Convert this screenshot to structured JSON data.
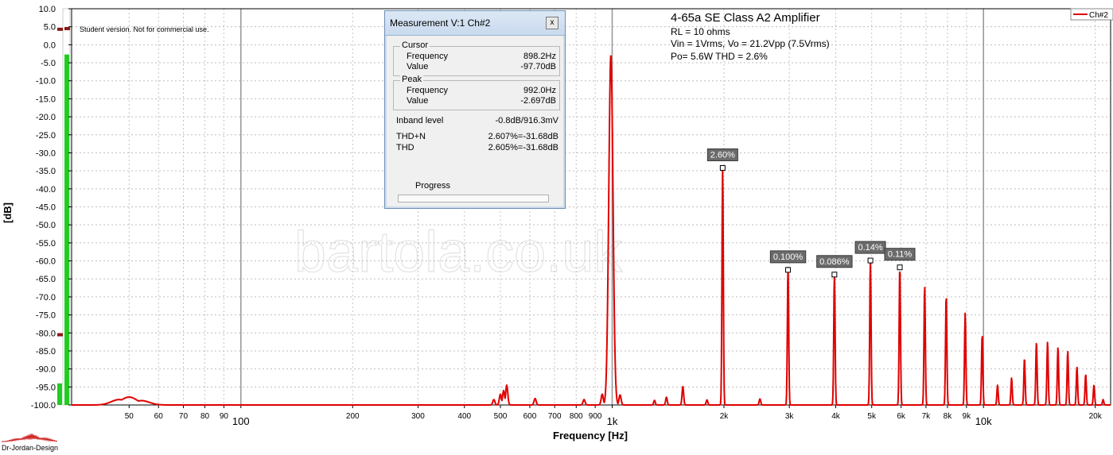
{
  "chart_data": {
    "type": "line",
    "title": "4-65a SE Class A2 Amplifier",
    "subtitle_lines": [
      "RL = 10 ohms",
      "Vin = 1Vrms, Vo = 21.2Vpp (7.5Vrms)",
      "Po= 5.6W THD = 2.6%"
    ],
    "xlabel": "Frequency [Hz]",
    "ylabel": "[dB]",
    "x_scale": "log",
    "xlim": [
      35,
      22000
    ],
    "ylim": [
      -100,
      10
    ],
    "y_ticks": [
      10,
      5,
      0,
      -5,
      -10,
      -15,
      -20,
      -25,
      -30,
      -35,
      -40,
      -45,
      -50,
      -55,
      -60,
      -65,
      -70,
      -75,
      -80,
      -85,
      -90,
      -95,
      -100
    ],
    "y_tick_labels": [
      "10.0",
      "5.0",
      "0.0",
      "-5.0",
      "-10.0",
      "-15.0",
      "-20.0",
      "-25.0",
      "-30.0",
      "-35.0",
      "-40.0",
      "-45.0",
      "-50.0",
      "-55.0",
      "-60.0",
      "-65.0",
      "-70.0",
      "-75.0",
      "-80.0",
      "-85.0",
      "-90.0",
      "-95.0",
      "-100.0"
    ],
    "x_ticks": [
      {
        "value": 50,
        "label": "50"
      },
      {
        "value": 60,
        "label": "60"
      },
      {
        "value": 70,
        "label": "70"
      },
      {
        "value": 80,
        "label": "80"
      },
      {
        "value": 90,
        "label": "90"
      },
      {
        "value": 100,
        "label": "100"
      },
      {
        "value": 200,
        "label": "200"
      },
      {
        "value": 300,
        "label": "300"
      },
      {
        "value": 400,
        "label": "400"
      },
      {
        "value": 500,
        "label": "500"
      },
      {
        "value": 600,
        "label": "600"
      },
      {
        "value": 700,
        "label": "700"
      },
      {
        "value": 800,
        "label": "800"
      },
      {
        "value": 900,
        "label": "900"
      },
      {
        "value": 1000,
        "label": "1k"
      },
      {
        "value": 2000,
        "label": "2k"
      },
      {
        "value": 3000,
        "label": "3k"
      },
      {
        "value": 4000,
        "label": "4k"
      },
      {
        "value": 5000,
        "label": "5k"
      },
      {
        "value": 6000,
        "label": "6k"
      },
      {
        "value": 7000,
        "label": "7k"
      },
      {
        "value": 8000,
        "label": "8k"
      },
      {
        "value": 9000,
        "label": "9k"
      },
      {
        "value": 10000,
        "label": "10k"
      },
      {
        "value": 20000,
        "label": "20k"
      }
    ],
    "major_gridlines": [
      100,
      1000,
      10000
    ],
    "grid": true,
    "legend_position": "top-right",
    "series": [
      {
        "name": "Ch#2",
        "color": "#e00000",
        "floor": -100,
        "peaks": [
          {
            "f": 47,
            "db": -98.5,
            "w": 0.03
          },
          {
            "f": 50,
            "db": -97.8,
            "w": 0.03
          },
          {
            "f": 54,
            "db": -98.8,
            "w": 0.03
          },
          {
            "f": 480,
            "db": -98.5,
            "w": 0.004
          },
          {
            "f": 500,
            "db": -97.0,
            "w": 0.004
          },
          {
            "f": 510,
            "db": -96.0,
            "w": 0.004
          },
          {
            "f": 520,
            "db": -94.5,
            "w": 0.004
          },
          {
            "f": 620,
            "db": -98.2,
            "w": 0.004
          },
          {
            "f": 840,
            "db": -98.5,
            "w": 0.004
          },
          {
            "f": 940,
            "db": -97.0,
            "w": 0.004
          },
          {
            "f": 992,
            "db": -2.697,
            "w": 0.008
          },
          {
            "f": 1050,
            "db": -97.2,
            "w": 0.004
          },
          {
            "f": 1300,
            "db": -98.7,
            "w": 0.003
          },
          {
            "f": 1400,
            "db": -97.8,
            "w": 0.003
          },
          {
            "f": 1550,
            "db": -94.8,
            "w": 0.003
          },
          {
            "f": 1800,
            "db": -98.6,
            "w": 0.003
          },
          {
            "f": 1984,
            "db": -34,
            "w": 0.0025
          },
          {
            "f": 2500,
            "db": -98.3,
            "w": 0.003
          },
          {
            "f": 2976,
            "db": -61.5,
            "w": 0.0025
          },
          {
            "f": 3968,
            "db": -63.5,
            "w": 0.0025
          },
          {
            "f": 4960,
            "db": -59.5,
            "w": 0.0025
          },
          {
            "f": 5952,
            "db": -61.5,
            "w": 0.0025
          },
          {
            "f": 6944,
            "db": -66.8,
            "w": 0.0025
          },
          {
            "f": 7936,
            "db": -69.5,
            "w": 0.0025
          },
          {
            "f": 8928,
            "db": -74.5,
            "w": 0.0025
          },
          {
            "f": 9920,
            "db": -80.5,
            "w": 0.0025
          },
          {
            "f": 10912,
            "db": -94.5,
            "w": 0.0025
          },
          {
            "f": 11904,
            "db": -92.5,
            "w": 0.0025
          },
          {
            "f": 12896,
            "db": -87.0,
            "w": 0.0025
          },
          {
            "f": 13888,
            "db": -82.5,
            "w": 0.0025
          },
          {
            "f": 14880,
            "db": -82.5,
            "w": 0.0025
          },
          {
            "f": 15872,
            "db": -84.0,
            "w": 0.0025
          },
          {
            "f": 16864,
            "db": -85.0,
            "w": 0.0025
          },
          {
            "f": 17856,
            "db": -89.5,
            "w": 0.0025
          },
          {
            "f": 18848,
            "db": -91.5,
            "w": 0.0025
          },
          {
            "f": 19840,
            "db": -94.5,
            "w": 0.0025
          },
          {
            "f": 21000,
            "db": -98.5,
            "w": 0.0025
          }
        ]
      }
    ],
    "harmonic_labels": [
      {
        "f": 1984,
        "db": -34.2,
        "label": "2.60%"
      },
      {
        "f": 2976,
        "db": -62.5,
        "label": "0.100%"
      },
      {
        "f": 3968,
        "db": -63.8,
        "label": "0.086%"
      },
      {
        "f": 4960,
        "db": -59.9,
        "label": "0.14%"
      },
      {
        "f": 5952,
        "db": -61.8,
        "label": "0.11%"
      }
    ],
    "level_meter": [
      {
        "db": -2.7,
        "color": "#22cc22"
      },
      {
        "db": -94,
        "color": "#22cc22"
      }
    ],
    "level_marks": [
      {
        "db": 4.3,
        "color": "#8b1a1a"
      },
      {
        "db": -80.5,
        "color": "#8b1a1a"
      }
    ]
  },
  "notice": "Student version. Not for commercial use.",
  "watermark": "bartola.co.uk",
  "logo_text": "Dr-Jordan-Design",
  "measurement_window": {
    "title": "Measurement V:1 Ch#2",
    "close_glyph": "x",
    "cursor": {
      "title": "Cursor",
      "frequency_label": "Frequency",
      "frequency": "898.2Hz",
      "value_label": "Value",
      "value": "-97.70dB"
    },
    "peak": {
      "title": "Peak",
      "frequency_label": "Frequency",
      "frequency": "992.0Hz",
      "value_label": "Value",
      "value": "-2.697dB"
    },
    "inband_label": "Inband level",
    "inband_value": "-0.8dB/916.3mV",
    "thdn_label": "THD+N",
    "thdn_value": "2.607%=-31.68dB",
    "thd_label": "THD",
    "thd_value": "2.605%=-31.68dB",
    "progress_label": "Progress"
  }
}
